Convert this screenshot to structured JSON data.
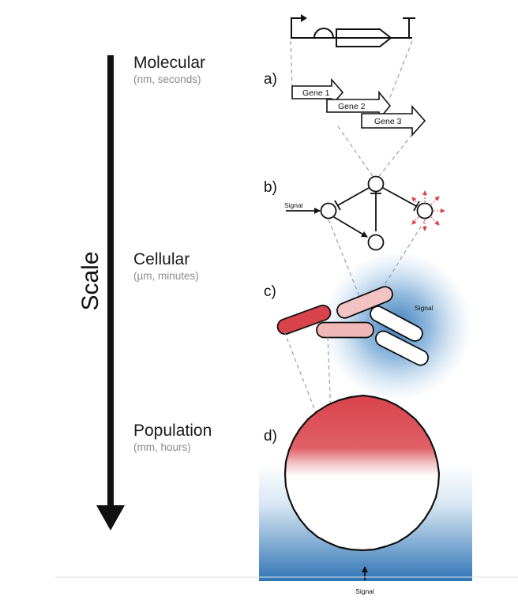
{
  "scale_axis": {
    "label": "Scale"
  },
  "levels": [
    {
      "name": "Molecular",
      "detail": "(nm, seconds)"
    },
    {
      "name": "Cellular",
      "detail": "(µm, minutes)"
    },
    {
      "name": "Population",
      "detail": "(mm, hours)"
    }
  ],
  "panels": {
    "a": {
      "letter": "a)",
      "genes": [
        "Gene 1",
        "Gene 2",
        "Gene 3"
      ]
    },
    "b": {
      "letter": "b)",
      "signal": "Signal"
    },
    "c": {
      "letter": "c)",
      "signal": "Signal",
      "cell_colors": [
        "#d9434c",
        "#f3c2c2",
        "#f0b7b7",
        "#ffffff",
        "#ffffff"
      ]
    },
    "d": {
      "letter": "d)",
      "signal": "Signal"
    }
  },
  "colors": {
    "red": "#d9434c",
    "blue": "#2e74b8",
    "ink": "#111111"
  }
}
